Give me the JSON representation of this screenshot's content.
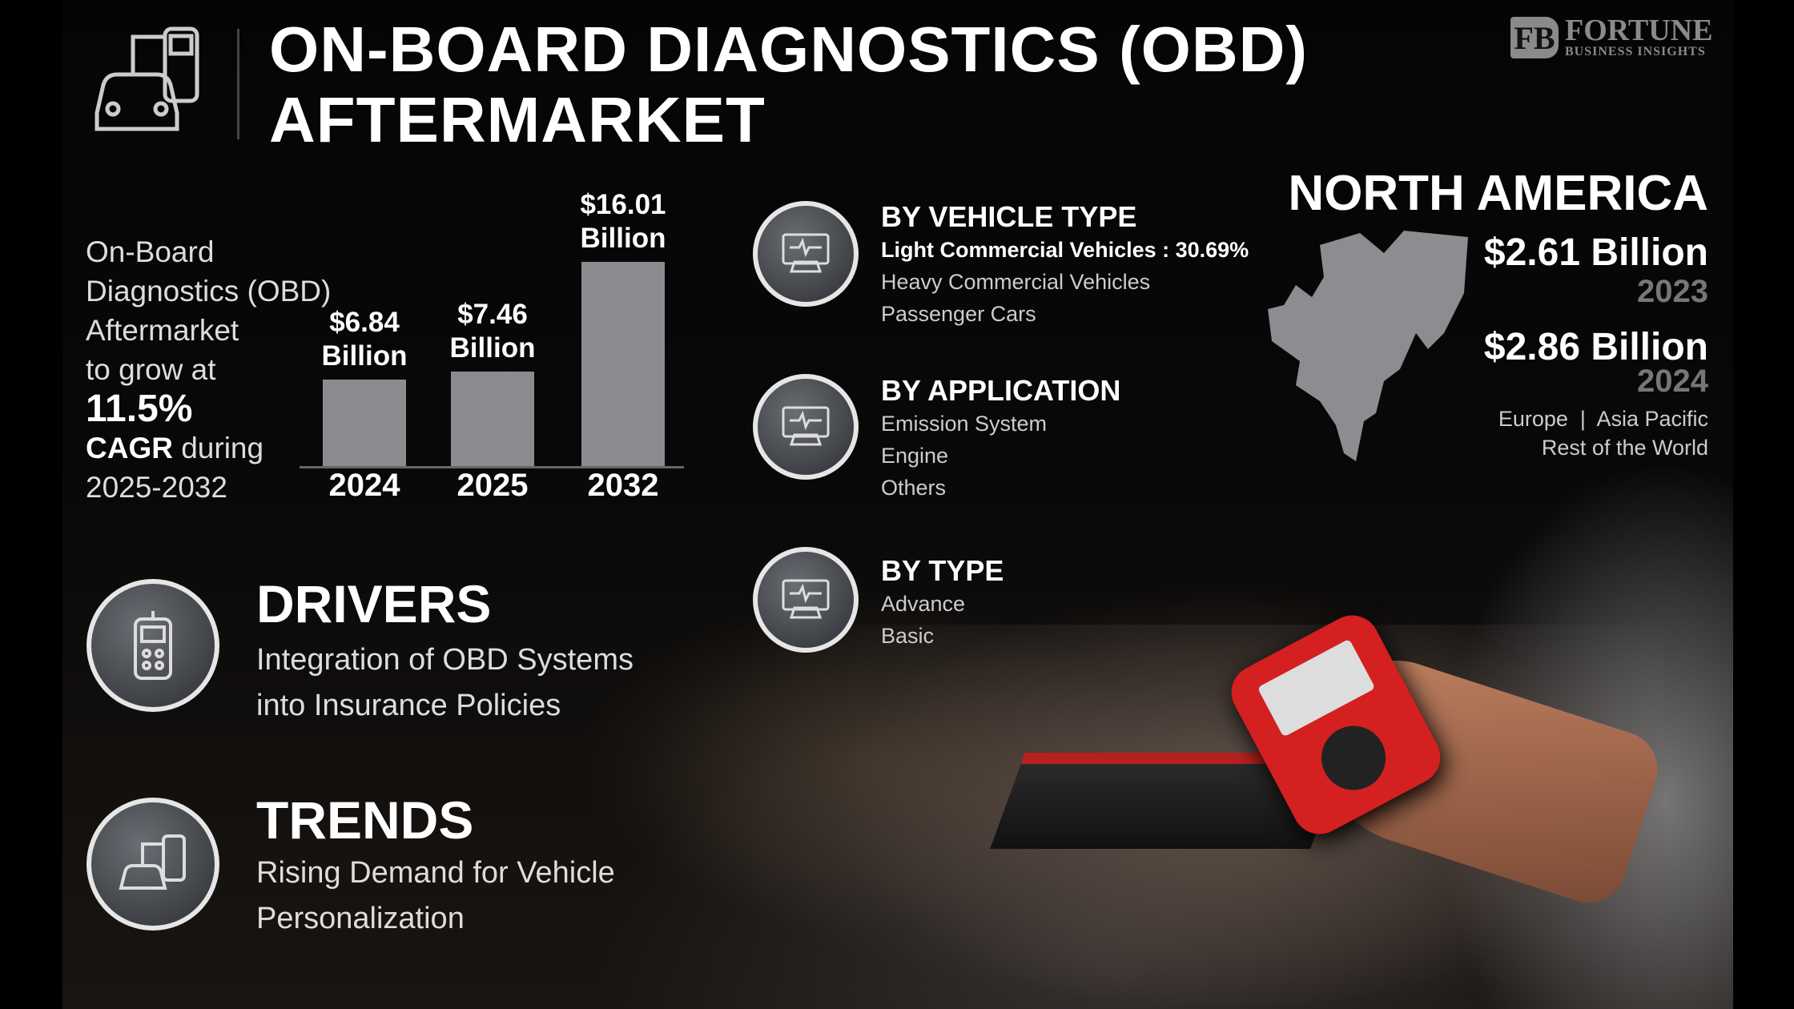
{
  "header": {
    "title_line1": "ON-BOARD DIAGNOSTICS (OBD)",
    "title_line2": "AFTERMARKET",
    "logo_main": "FORTUNE",
    "logo_sub": "BUSINESS INSIGHTS",
    "logo_mark": "FB"
  },
  "intro": {
    "line1": "On-Board",
    "line2": "Diagnostics (OBD)",
    "line3": "Aftermarket",
    "line4": "to grow at",
    "cagr": "11.5%",
    "cagr_label": "CAGR",
    "during": " during",
    "period": "2025-2032"
  },
  "chart_data": {
    "type": "bar",
    "categories": [
      "2024",
      "2025",
      "2032"
    ],
    "values": [
      6.84,
      7.46,
      16.01
    ],
    "data_labels": [
      [
        "$6.84",
        "Billion"
      ],
      [
        "$7.46",
        "Billion"
      ],
      [
        "$16.01",
        "Billion"
      ]
    ],
    "unit": "USD Billion",
    "bar_color": "#8b8c90",
    "ylim": [
      0,
      16.01
    ]
  },
  "segments": [
    {
      "heading": "BY VEHICLE TYPE",
      "icon": "car-diagnostic-icon",
      "items": [
        "Light Commercial Vehicles : 30.69%",
        "Heavy Commercial Vehicles",
        "Passenger Cars"
      ]
    },
    {
      "heading": "BY APPLICATION",
      "icon": "car-engine-gauge-icon",
      "items": [
        "Emission System",
        "Engine",
        "Others"
      ]
    },
    {
      "heading": "BY TYPE",
      "icon": "monitor-diagnostic-icon",
      "items": [
        "Advance",
        "Basic"
      ]
    }
  ],
  "region": {
    "name": "NORTH AMERICA",
    "value1": "$2.61 Billion",
    "year1": "2023",
    "value2": "$2.86 Billion",
    "year2": "2024",
    "others_line1": "Europe  |  Asia Pacific",
    "others_line2": "Rest of the World"
  },
  "drivers": {
    "heading": "DRIVERS",
    "line1": "Integration of OBD Systems",
    "line2": "into Insurance Policies",
    "icon": "obd-scanner-icon"
  },
  "trends": {
    "heading": "TRENDS",
    "line1": "Rising Demand for Vehicle",
    "line2": "Personalization",
    "icon": "car-scanner-icon"
  }
}
